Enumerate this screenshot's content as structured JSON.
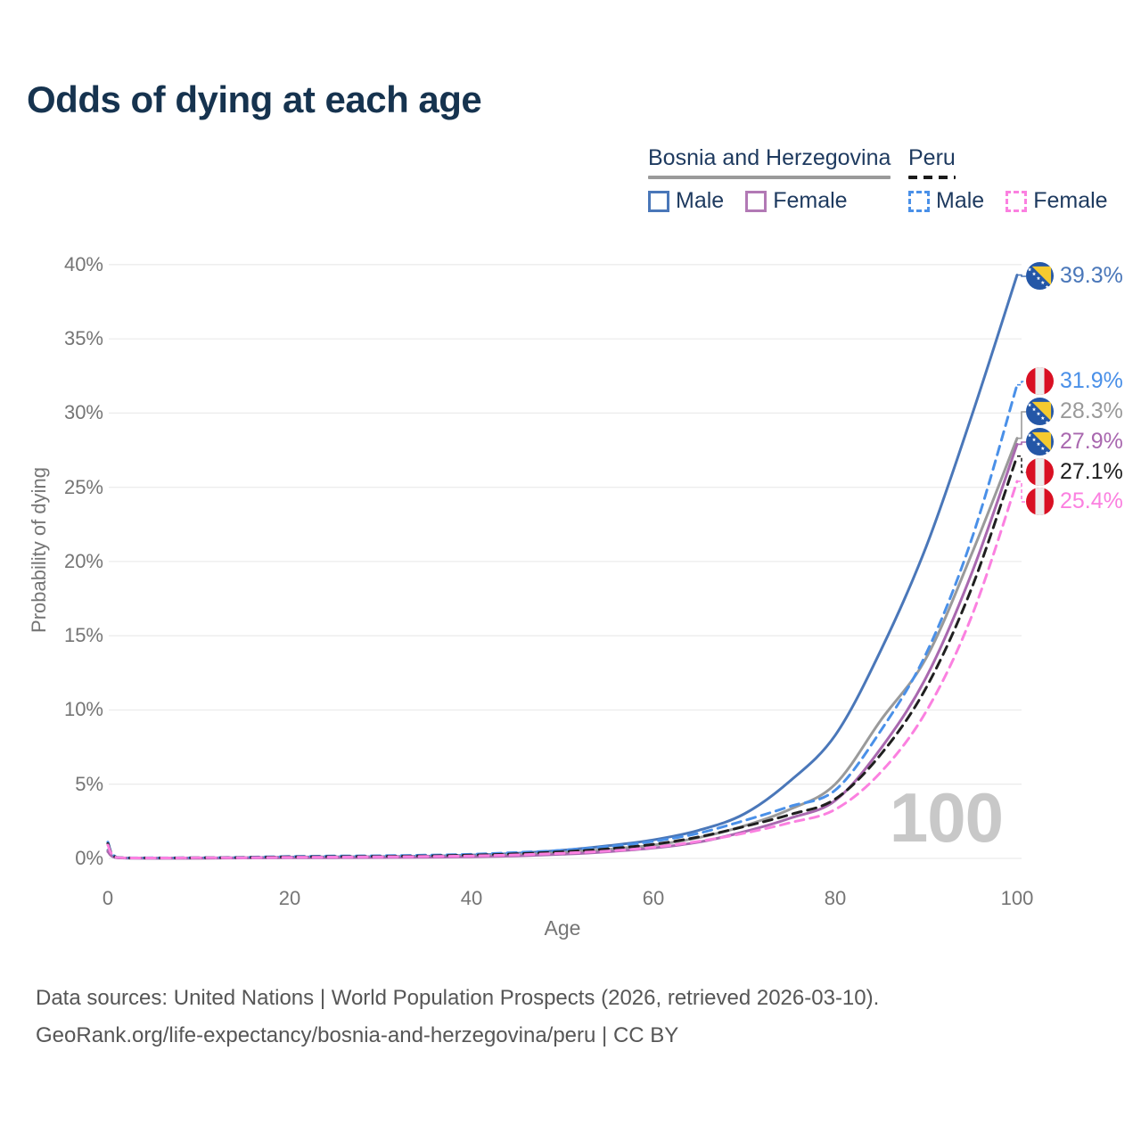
{
  "header": {
    "title": "Odds of dying at each age"
  },
  "legend": {
    "groups": [
      {
        "label": "Bosnia and Herzegovina",
        "line_color": "#9a9a9a",
        "line_style": "solid",
        "items": [
          {
            "label": "Male",
            "color": "#4a77b9",
            "style": "solid"
          },
          {
            "label": "Female",
            "color": "#b279b5",
            "style": "solid"
          }
        ]
      },
      {
        "label": "Peru",
        "line_color": "#1a1a1a",
        "line_style": "dashed",
        "items": [
          {
            "label": "Male",
            "color": "#4a90e8",
            "style": "dashed"
          },
          {
            "label": "Female",
            "color": "#fb80e0",
            "style": "dashed"
          }
        ]
      }
    ]
  },
  "chart_data": {
    "type": "line",
    "title": "Odds of dying at each age",
    "xlabel": "Age",
    "ylabel": "Probability of dying",
    "xlim": [
      0,
      100
    ],
    "ylim": [
      0,
      40
    ],
    "grid": "horizontal",
    "legend_position": "top-right",
    "watermark": "100",
    "x_ticks": [
      {
        "value": 0,
        "label": "0"
      },
      {
        "value": 20,
        "label": "20"
      },
      {
        "value": 40,
        "label": "40"
      },
      {
        "value": 60,
        "label": "60"
      },
      {
        "value": 80,
        "label": "80"
      },
      {
        "value": 100,
        "label": "100"
      }
    ],
    "y_ticks": [
      {
        "value": 0,
        "label": "0%"
      },
      {
        "value": 5,
        "label": "5%"
      },
      {
        "value": 10,
        "label": "10%"
      },
      {
        "value": 15,
        "label": "15%"
      },
      {
        "value": 20,
        "label": "20%"
      },
      {
        "value": 25,
        "label": "25%"
      },
      {
        "value": 30,
        "label": "30%"
      },
      {
        "value": 35,
        "label": "35%"
      },
      {
        "value": 40,
        "label": "40%"
      }
    ],
    "ages": [
      0,
      1,
      5,
      10,
      15,
      20,
      25,
      30,
      35,
      40,
      45,
      50,
      55,
      60,
      65,
      70,
      75,
      80,
      85,
      90,
      95,
      100
    ],
    "series": [
      {
        "name": "Bosnia and Herzegovina — Male",
        "country": "Bosnia and Herzegovina",
        "sex": "Male",
        "color": "#4a77b9",
        "dash": false,
        "flag": "bih",
        "end_label": "39.3%",
        "end_value": 39.3,
        "values": [
          0.55,
          0.05,
          0.02,
          0.03,
          0.05,
          0.09,
          0.1,
          0.12,
          0.15,
          0.22,
          0.35,
          0.55,
          0.85,
          1.25,
          1.9,
          3.0,
          5.2,
          8.3,
          14.0,
          21.0,
          29.8,
          39.3
        ]
      },
      {
        "name": "Bosnia and Herzegovina — Both sexes",
        "country": "Bosnia and Herzegovina",
        "sex": "Both",
        "color": "#9a9a9a",
        "dash": false,
        "flag": "bih",
        "end_label": "28.3%",
        "end_value": 28.3,
        "values": [
          0.5,
          0.04,
          0.02,
          0.02,
          0.04,
          0.06,
          0.07,
          0.09,
          0.11,
          0.16,
          0.25,
          0.4,
          0.62,
          0.9,
          1.4,
          2.2,
          3.3,
          5.0,
          9.3,
          13.5,
          20.5,
          28.3
        ]
      },
      {
        "name": "Bosnia and Herzegovina — Female",
        "country": "Bosnia and Herzegovina",
        "sex": "Female",
        "color": "#a968af",
        "dash": false,
        "flag": "bih",
        "end_label": "27.9%",
        "end_value": 27.9,
        "values": [
          0.45,
          0.04,
          0.01,
          0.02,
          0.03,
          0.04,
          0.05,
          0.06,
          0.08,
          0.11,
          0.17,
          0.28,
          0.45,
          0.7,
          1.1,
          1.8,
          2.7,
          3.9,
          7.4,
          12.2,
          19.2,
          27.9
        ]
      },
      {
        "name": "Peru — Male",
        "country": "Peru",
        "sex": "Male",
        "color": "#4a90e8",
        "dash": true,
        "flag": "peru",
        "end_label": "31.9%",
        "end_value": 31.9,
        "values": [
          1.1,
          0.07,
          0.04,
          0.05,
          0.08,
          0.13,
          0.16,
          0.18,
          0.22,
          0.28,
          0.4,
          0.55,
          0.8,
          1.15,
          1.7,
          2.55,
          3.5,
          4.6,
          8.6,
          13.8,
          21.5,
          31.9
        ]
      },
      {
        "name": "Peru — Both sexes",
        "country": "Peru",
        "sex": "Both",
        "color": "#1f1f1f",
        "dash": true,
        "flag": "peru",
        "end_label": "27.1%",
        "end_value": 27.1,
        "values": [
          1.0,
          0.06,
          0.03,
          0.04,
          0.06,
          0.1,
          0.12,
          0.14,
          0.17,
          0.22,
          0.31,
          0.45,
          0.65,
          0.95,
          1.45,
          2.15,
          2.95,
          4.0,
          7.0,
          11.5,
          18.2,
          27.1
        ]
      },
      {
        "name": "Peru — Female",
        "country": "Peru",
        "sex": "Female",
        "color": "#fb80e0",
        "dash": true,
        "flag": "peru",
        "end_label": "25.4%",
        "end_value": 25.4,
        "values": [
          0.9,
          0.06,
          0.03,
          0.04,
          0.05,
          0.08,
          0.09,
          0.11,
          0.13,
          0.17,
          0.24,
          0.35,
          0.5,
          0.75,
          1.15,
          1.7,
          2.4,
          3.3,
          5.8,
          9.9,
          16.3,
          25.4
        ]
      }
    ]
  },
  "footer": {
    "line1": "Data sources: United Nations | World Population Prospects (2026, retrieved 2026-03-10).",
    "line2": "GeoRank.org/life-expectancy/bosnia-and-herzegovina/peru | CC BY"
  }
}
